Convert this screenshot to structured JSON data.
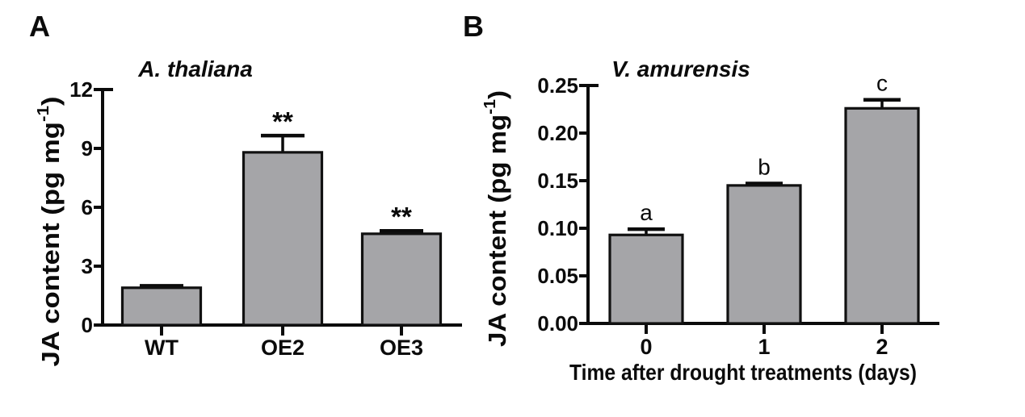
{
  "figure": {
    "background": "#ffffff",
    "ink_color": "#0b0b0b",
    "bar_fill_color": "#a5a5a8",
    "bar_border_color": "#111111"
  },
  "chart_data": [
    {
      "type": "bar",
      "panel_label": "A",
      "title": "A. thaliana",
      "ylabel": {
        "text": "JA content (pg mg⁻¹)",
        "main": "JA content (pg mg",
        "sup": "-1",
        "close": ")"
      },
      "xlabel": "",
      "categories": [
        "WT",
        "OE2",
        "OE3"
      ],
      "values": [
        1.9,
        8.8,
        4.65
      ],
      "errors": [
        0.1,
        0.85,
        0.15
      ],
      "annotations": [
        "",
        "**",
        "**"
      ],
      "annotation_style": "significance-stars",
      "yticks": [
        "0",
        "3",
        "6",
        "9",
        "12"
      ],
      "ylim": [
        0,
        12
      ],
      "grid": false,
      "legend": "none"
    },
    {
      "type": "bar",
      "panel_label": "B",
      "title": "V. amurensis",
      "ylabel": {
        "text": "JA content (pg mg⁻¹)",
        "main": "JA content (pg mg",
        "sup": "-1",
        "close": ")"
      },
      "xlabel": "Time after drought treatments (days)",
      "categories": [
        "0",
        "1",
        "2"
      ],
      "values": [
        0.093,
        0.145,
        0.226
      ],
      "errors": [
        0.006,
        0.002,
        0.009
      ],
      "annotations": [
        "a",
        "b",
        "c"
      ],
      "annotation_style": "group-letters",
      "yticks": [
        "0.00",
        "0.05",
        "0.10",
        "0.15",
        "0.20",
        "0.25"
      ],
      "ylim": [
        0,
        0.25
      ],
      "grid": false,
      "legend": "none"
    }
  ]
}
